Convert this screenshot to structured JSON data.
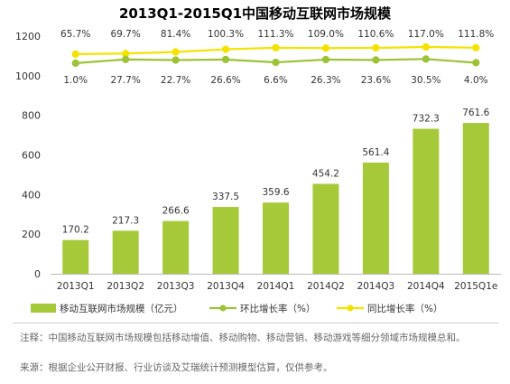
{
  "chart_data": {
    "type": "bar",
    "title": "2013Q1-2015Q1中国移动互联网市场规模",
    "categories": [
      "2013Q1",
      "2013Q2",
      "2013Q3",
      "2013Q4",
      "2014Q1",
      "2014Q2",
      "2014Q3",
      "2014Q4",
      "2015Q1e"
    ],
    "ylim": [
      0,
      1200
    ],
    "yticks": [
      0,
      200,
      400,
      600,
      800,
      1000,
      1200
    ],
    "legend_position": "bottom",
    "series": [
      {
        "name": "移动互联网市场规模（亿元）",
        "type": "bar",
        "color": "#a6c93a",
        "values": [
          170.2,
          217.3,
          266.6,
          337.5,
          359.6,
          454.2,
          561.4,
          732.3,
          761.6
        ],
        "labels": [
          "170.2",
          "217.3",
          "266.6",
          "337.5",
          "359.6",
          "454.2",
          "561.4",
          "732.3",
          "761.6"
        ]
      },
      {
        "name": "环比增长率（%）",
        "type": "line",
        "color": "#9dc238",
        "values": [
          1.0,
          27.7,
          22.7,
          26.6,
          6.6,
          26.3,
          23.6,
          30.5,
          4.0
        ],
        "labels": [
          "1.0%",
          "27.7%",
          "22.7%",
          "26.6%",
          "6.6%",
          "26.3%",
          "23.6%",
          "30.5%",
          "4.0%"
        ]
      },
      {
        "name": "同比增长率（%）",
        "type": "line",
        "color": "#f4e300",
        "values": [
          65.7,
          69.7,
          81.4,
          100.3,
          111.3,
          109.0,
          110.6,
          117.0,
          111.8
        ],
        "labels": [
          "65.7%",
          "69.7%",
          "81.4%",
          "100.3%",
          "111.3%",
          "109.0%",
          "110.6%",
          "117.0%",
          "111.8%"
        ]
      }
    ]
  },
  "notes": {
    "main": "注释：中国移动互联网市场规模包括移动增值、移动购物、移动营销、移动游戏等细分领域市场规模总和。",
    "source": "来源：根据企业公开财报、行业访谈及艾瑞统计预测模型估算，仅供参考。"
  }
}
